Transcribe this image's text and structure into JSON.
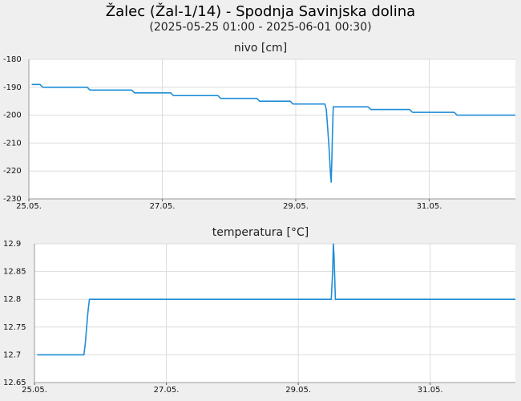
{
  "header": {
    "title": "Žalec (Žal-1/14) - Spodnja Savinjska dolina",
    "subtitle": "(2025-05-25 01:00 - 2025-06-01 00:30)"
  },
  "colors": {
    "line": "#1f8dd6",
    "grid": "#dcdcdc",
    "plot_bg": "#ffffff",
    "page_bg": "#efefef"
  },
  "chart_data": [
    {
      "type": "line",
      "title": "nivo [cm]",
      "xlim": [
        "2025-05-25 00:00",
        "2025-06-01 07:00"
      ],
      "ylim": [
        -230,
        -180
      ],
      "xticks": [
        "2025-05-25",
        "2025-05-27",
        "2025-05-29",
        "2025-05-31"
      ],
      "xtick_labels": [
        "25.05.",
        "27.05.",
        "29.05.",
        "31.05."
      ],
      "yticks": [
        -230,
        -220,
        -210,
        -200,
        -190,
        -180
      ],
      "ytick_labels": [
        "-230",
        "-220",
        "-210",
        "-200",
        "-190",
        "-180"
      ],
      "grid": true,
      "series": [
        {
          "x": [
            "2025-05-25 01:00",
            "2025-05-25 04:00",
            "2025-05-25 05:00",
            "2025-05-25 21:00",
            "2025-05-25 22:00",
            "2025-05-26 13:00",
            "2025-05-26 14:00",
            "2025-05-27 03:00",
            "2025-05-27 04:00",
            "2025-05-27 20:00",
            "2025-05-27 21:00",
            "2025-05-28 10:00",
            "2025-05-28 11:00",
            "2025-05-28 22:00",
            "2025-05-28 23:00",
            "2025-05-29 10:00",
            "2025-05-29 10:30",
            "2025-05-29 11:00",
            "2025-05-29 11:30",
            "2025-05-29 12:00",
            "2025-05-29 12:30",
            "2025-05-29 12:45",
            "2025-05-29 13:00",
            "2025-05-29 13:15",
            "2025-05-29 13:30",
            "2025-05-29 14:00",
            "2025-05-29 15:00",
            "2025-05-30 02:00",
            "2025-05-30 03:00",
            "2025-05-30 17:00",
            "2025-05-30 18:00",
            "2025-05-31 09:00",
            "2025-05-31 10:00",
            "2025-06-01 07:00"
          ],
          "y": [
            -189,
            -189,
            -190,
            -190,
            -191,
            -191,
            -192,
            -192,
            -193,
            -193,
            -194,
            -194,
            -195,
            -195,
            -196,
            -196,
            -196,
            -198,
            -205,
            -212,
            -221,
            -224,
            -215,
            -205,
            -197,
            -197,
            -197,
            -197,
            -198,
            -198,
            -199,
            -199,
            -200,
            -200
          ]
        }
      ]
    },
    {
      "type": "line",
      "title": "temperatura [°C]",
      "xlim": [
        "2025-05-25 00:00",
        "2025-06-01 07:00"
      ],
      "ylim": [
        12.65,
        12.9
      ],
      "xticks": [
        "2025-05-25",
        "2025-05-27",
        "2025-05-29",
        "2025-05-31"
      ],
      "xtick_labels": [
        "25.05.",
        "27.05.",
        "29.05.",
        "31.05."
      ],
      "yticks": [
        12.65,
        12.7,
        12.75,
        12.8,
        12.85,
        12.9
      ],
      "ytick_labels": [
        "12.65",
        "12.7",
        "12.75",
        "12.8",
        "12.85",
        "12.9"
      ],
      "grid": true,
      "series": [
        {
          "x": [
            "2025-05-25 01:00",
            "2025-05-25 18:00",
            "2025-05-25 18:30",
            "2025-05-25 19:00",
            "2025-05-25 19:30",
            "2025-05-25 20:00",
            "2025-05-25 20:30",
            "2025-05-29 12:00",
            "2025-05-29 12:30",
            "2025-05-29 12:45",
            "2025-05-29 13:00",
            "2025-05-29 13:15",
            "2025-05-29 13:30",
            "2025-05-29 14:00",
            "2025-06-01 07:00"
          ],
          "y": [
            12.7,
            12.7,
            12.72,
            12.75,
            12.78,
            12.8,
            12.8,
            12.8,
            12.85,
            12.9,
            12.88,
            12.84,
            12.8,
            12.8,
            12.8
          ]
        }
      ]
    }
  ]
}
